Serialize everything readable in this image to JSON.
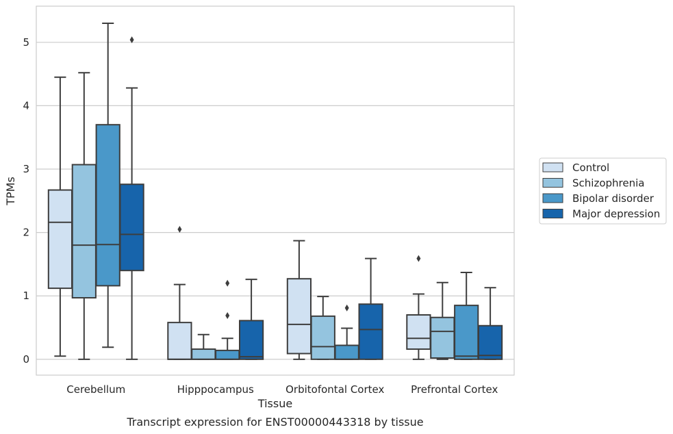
{
  "chart_data": {
    "type": "box",
    "title": "Transcript expression for ENST00000443318 by tissue",
    "xlabel": "Tissue",
    "ylabel": "TPMs",
    "ylim": [
      -0.25,
      5.57
    ],
    "yticks": [
      0,
      1,
      2,
      3,
      4,
      5
    ],
    "grid": true,
    "legend_position": "right",
    "categories": [
      "Cerebellum",
      "Hipppocampus",
      "Orbitofontal Cortex",
      "Prefrontal Cortex"
    ],
    "series": [
      {
        "name": "Control",
        "color": "#d0e1f2",
        "boxes": [
          {
            "whislo": 0.05,
            "q1": 1.12,
            "med": 2.16,
            "q3": 2.67,
            "whishi": 4.45,
            "fliers": []
          },
          {
            "whislo": 0.0,
            "q1": 0.0,
            "med": 0.0,
            "q3": 0.58,
            "whishi": 1.18,
            "fliers": [
              2.05
            ]
          },
          {
            "whislo": 0.0,
            "q1": 0.09,
            "med": 0.55,
            "q3": 1.27,
            "whishi": 1.87,
            "fliers": []
          },
          {
            "whislo": 0.0,
            "q1": 0.16,
            "med": 0.33,
            "q3": 0.7,
            "whishi": 1.03,
            "fliers": [
              1.59
            ]
          }
        ]
      },
      {
        "name": "Schizophrenia",
        "color": "#94c4df",
        "boxes": [
          {
            "whislo": 0.0,
            "q1": 0.97,
            "med": 1.8,
            "q3": 3.07,
            "whishi": 4.52,
            "fliers": []
          },
          {
            "whislo": 0.0,
            "q1": 0.0,
            "med": 0.0,
            "q3": 0.16,
            "whishi": 0.39,
            "fliers": []
          },
          {
            "whislo": 0.0,
            "q1": 0.0,
            "med": 0.2,
            "q3": 0.68,
            "whishi": 0.99,
            "fliers": []
          },
          {
            "whislo": 0.0,
            "q1": 0.02,
            "med": 0.44,
            "q3": 0.66,
            "whishi": 1.21,
            "fliers": []
          }
        ]
      },
      {
        "name": "Bipolar disorder",
        "color": "#4a98c9",
        "boxes": [
          {
            "whislo": 0.19,
            "q1": 1.16,
            "med": 1.81,
            "q3": 3.7,
            "whishi": 5.3,
            "fliers": []
          },
          {
            "whislo": 0.0,
            "q1": 0.0,
            "med": 0.0,
            "q3": 0.14,
            "whishi": 0.33,
            "fliers": [
              0.69,
              1.2
            ]
          },
          {
            "whislo": 0.0,
            "q1": 0.0,
            "med": 0.0,
            "q3": 0.22,
            "whishi": 0.49,
            "fliers": [
              0.81
            ]
          },
          {
            "whislo": 0.0,
            "q1": 0.0,
            "med": 0.05,
            "q3": 0.85,
            "whishi": 1.37,
            "fliers": []
          }
        ]
      },
      {
        "name": "Major depression",
        "color": "#1764ab",
        "boxes": [
          {
            "whislo": 0.0,
            "q1": 1.4,
            "med": 1.97,
            "q3": 2.76,
            "whishi": 4.28,
            "fliers": [
              5.04
            ]
          },
          {
            "whislo": 0.0,
            "q1": 0.0,
            "med": 0.04,
            "q3": 0.61,
            "whishi": 1.26,
            "fliers": []
          },
          {
            "whislo": 0.0,
            "q1": 0.0,
            "med": 0.47,
            "q3": 0.87,
            "whishi": 1.59,
            "fliers": []
          },
          {
            "whislo": 0.0,
            "q1": 0.0,
            "med": 0.06,
            "q3": 0.53,
            "whishi": 1.13,
            "fliers": []
          }
        ]
      }
    ]
  }
}
